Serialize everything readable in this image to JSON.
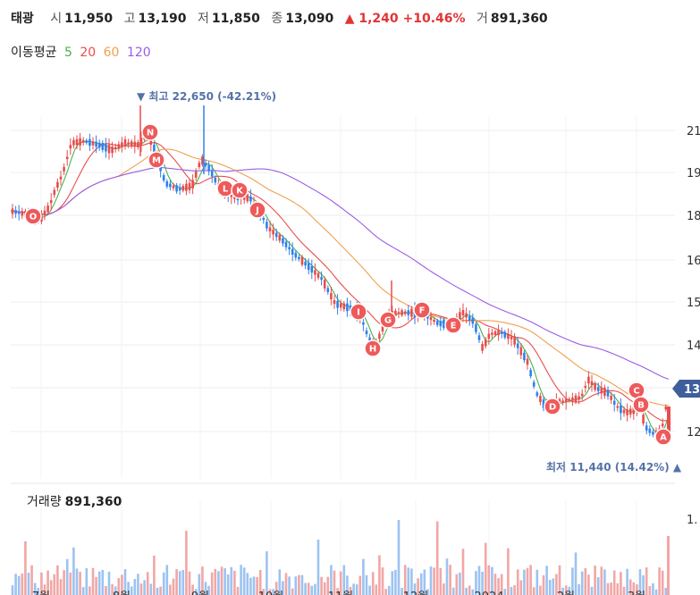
{
  "header": {
    "name": "태광",
    "open_label": "시",
    "open": "11,950",
    "high_label": "고",
    "high": "13,190",
    "low_label": "저",
    "low": "11,850",
    "close_label": "종",
    "close": "13,090",
    "change": "▲ 1,240 +10.46%",
    "volume_label": "거",
    "volume": "891,360"
  },
  "ma_legend": {
    "label": "이동평균",
    "items": [
      {
        "label": "5",
        "color": "#4caf50"
      },
      {
        "label": "20",
        "color": "#e84c4c"
      },
      {
        "label": "60",
        "color": "#f0a050"
      },
      {
        "label": "120",
        "color": "#9b5de5"
      }
    ]
  },
  "annotations": {
    "high": "▼ 최고 22,650 (-42.21%)",
    "low": "최저 11,440 (14.42%) ▲"
  },
  "volume_panel": {
    "label": "거래량",
    "value": "891,360",
    "axis_label": "1."
  },
  "colors": {
    "up": "#e84c4c",
    "down": "#2f80ed",
    "marker": "#ee5a5a",
    "tag": "#3f5f9c"
  },
  "chart_data": {
    "type": "candlestick",
    "title": "",
    "y_tick_labels": [
      "21",
      "19",
      "18",
      "16",
      "15",
      "14",
      "13",
      "12"
    ],
    "x_tick_labels": [
      "7월",
      "8월",
      "9월",
      "10월",
      "11월",
      "12월",
      "2024",
      "2월",
      "3월"
    ],
    "current_price_tag": "13",
    "event_markers": [
      "O",
      "N",
      "M",
      "L",
      "K",
      "J",
      "I",
      "H",
      "G",
      "F",
      "E",
      "D",
      "C",
      "B",
      "A"
    ],
    "moving_averages": [
      "5",
      "20",
      "60",
      "120"
    ],
    "last_close": 13090,
    "period_high": 22650,
    "period_low": 11440,
    "last_volume": 891360
  }
}
